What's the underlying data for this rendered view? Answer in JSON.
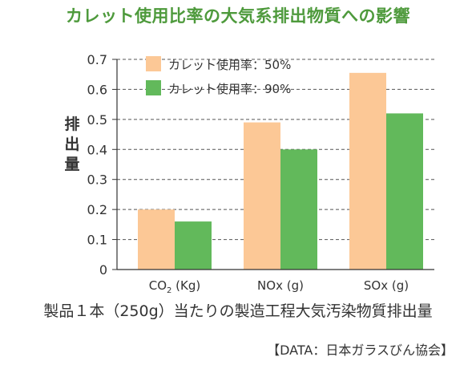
{
  "title": "カレット使用比率の大気系排出物質への影響",
  "caption": "製品１本（250g）当たりの製造工程大気汚染物質排出量",
  "source": "【DATA：日本ガラスびん協会】",
  "colors": {
    "title": "#4e9a3c",
    "series_50": "#fcc896",
    "series_90": "#62b95b",
    "grid": "#555555",
    "text": "#333333"
  },
  "chart_data": {
    "type": "bar",
    "title": "カレット使用比率の大気系排出物質への影響",
    "ylabel": "排出量",
    "xlabel": "",
    "categories": [
      "CO2 (Kg)",
      "NOx (g)",
      "SOx (g)"
    ],
    "ylim": [
      0,
      0.7
    ],
    "yticks": [
      "0",
      "0.1",
      "0.2",
      "0.3",
      "0.4",
      "0.5",
      "0.6",
      "0.7"
    ],
    "grid": "dashed horizontal",
    "legend": "top-left",
    "series": [
      {
        "name": "カレット使用率：50%",
        "values": [
          0.2,
          0.49,
          0.655
        ],
        "color": "#fcc896"
      },
      {
        "name": "カレット使用率：90%",
        "values": [
          0.16,
          0.4,
          0.52
        ],
        "color": "#62b95b"
      }
    ]
  }
}
